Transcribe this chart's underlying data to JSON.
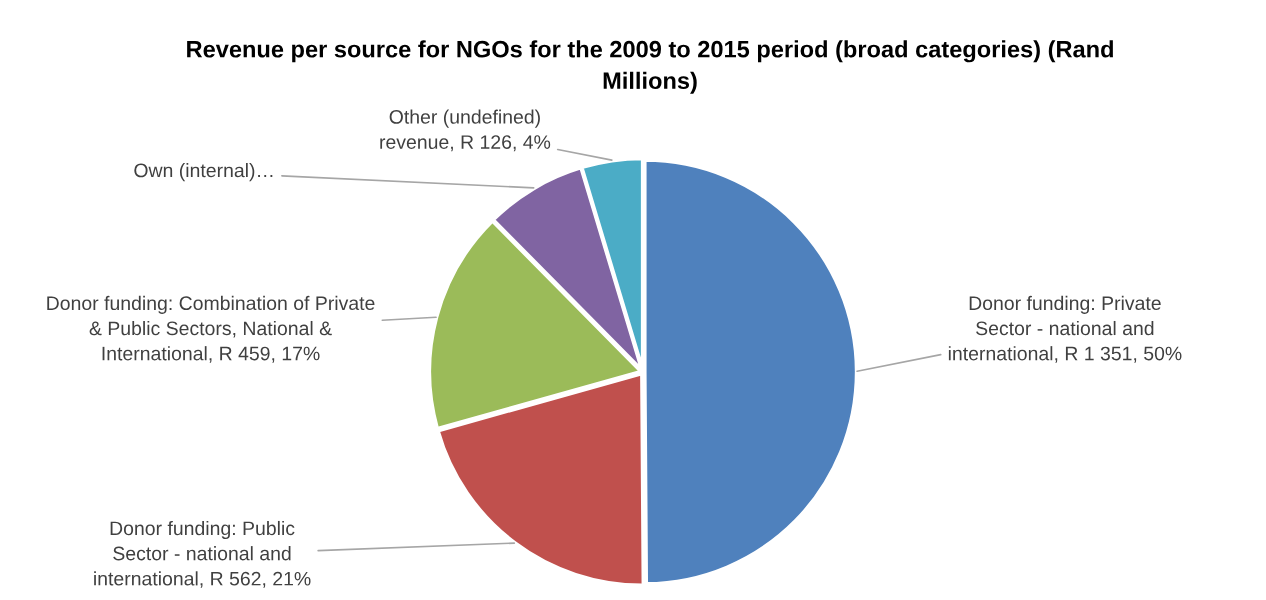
{
  "chart_data": {
    "type": "pie",
    "title": "Revenue per source for NGOs for the 2009 to 2015 period (broad categories) (Rand\nMillions)",
    "categories": [
      "Donor funding: Private\nSector - national and\ninternational",
      "Donor funding: Public\nSector - national and\ninternational",
      "Donor funding: Combination of Private\n& Public Sectors, National &\nInternational",
      "Own (internal)…",
      "Other (undefined)\nrevenue"
    ],
    "values": [
      1351,
      562,
      459,
      210,
      126
    ],
    "colors": [
      "#4f81bd",
      "#c0504d",
      "#9bbb59",
      "#8064a2",
      "#4bacc6"
    ],
    "value_labels": [
      "R 1 351, 50%",
      "R 562, 21%",
      "R 459, 17%",
      null,
      "R 126, 4%"
    ]
  }
}
